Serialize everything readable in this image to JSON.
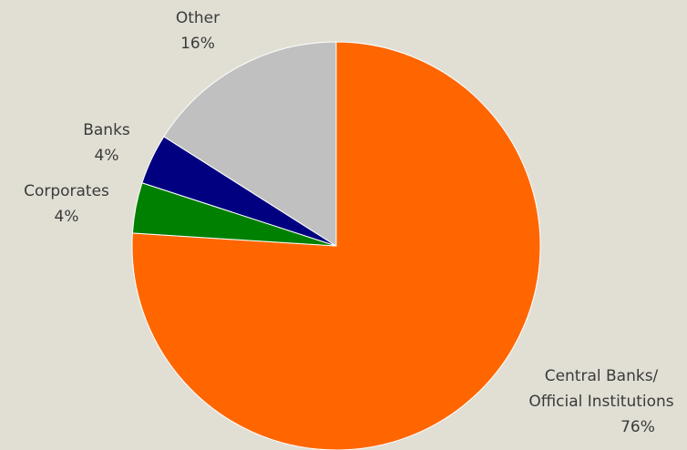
{
  "chart_data": {
    "type": "pie",
    "categories": [
      "Central Banks/\nOfficial Institutions",
      "Corporates",
      "Banks",
      "Other"
    ],
    "values": [
      76,
      4,
      4,
      16
    ],
    "value_labels": [
      "76%",
      "4%",
      "4%",
      "16%"
    ],
    "colors": [
      "#ff6600",
      "#008000",
      "#000080",
      "#c0c0c0"
    ]
  }
}
